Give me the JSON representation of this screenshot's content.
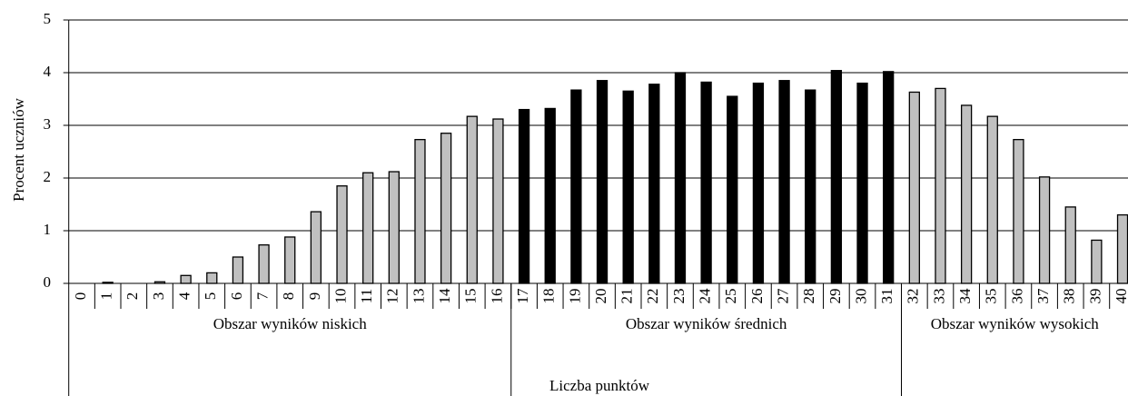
{
  "chart_data": {
    "type": "bar",
    "y_label": "Procent uczniów",
    "x_label": "Liczba punktów",
    "ylim": [
      0,
      5
    ],
    "yticks": [
      0,
      1,
      2,
      3,
      4,
      5
    ],
    "grid": true,
    "groups": [
      {
        "label": "Obszar wyników niskich",
        "color": "#c0c0c0",
        "categories": [
          "0",
          "1",
          "2",
          "3",
          "4",
          "5",
          "6",
          "7",
          "8",
          "9",
          "10",
          "11",
          "12",
          "13",
          "14",
          "15",
          "16"
        ],
        "values": [
          0,
          0.02,
          0,
          0.03,
          0.15,
          0.2,
          0.5,
          0.73,
          0.88,
          1.36,
          1.85,
          2.1,
          2.12,
          2.73,
          2.85,
          3.17,
          3.12
        ]
      },
      {
        "label": "Obszar wyników średnich",
        "color": "#000000",
        "categories": [
          "17",
          "18",
          "19",
          "20",
          "21",
          "22",
          "23",
          "24",
          "25",
          "26",
          "27",
          "28",
          "29",
          "30",
          "31"
        ],
        "values": [
          3.3,
          3.32,
          3.67,
          3.85,
          3.65,
          3.78,
          4.0,
          3.82,
          3.55,
          3.8,
          3.85,
          3.67,
          4.04,
          3.8,
          4.02
        ]
      },
      {
        "label": "Obszar wyników wysokich",
        "color": "#c0c0c0",
        "categories": [
          "32",
          "33",
          "34",
          "35",
          "36",
          "37",
          "38",
          "39",
          "40"
        ],
        "values": [
          3.63,
          3.7,
          3.38,
          3.17,
          2.73,
          2.02,
          1.45,
          0.82,
          1.3
        ]
      }
    ]
  }
}
